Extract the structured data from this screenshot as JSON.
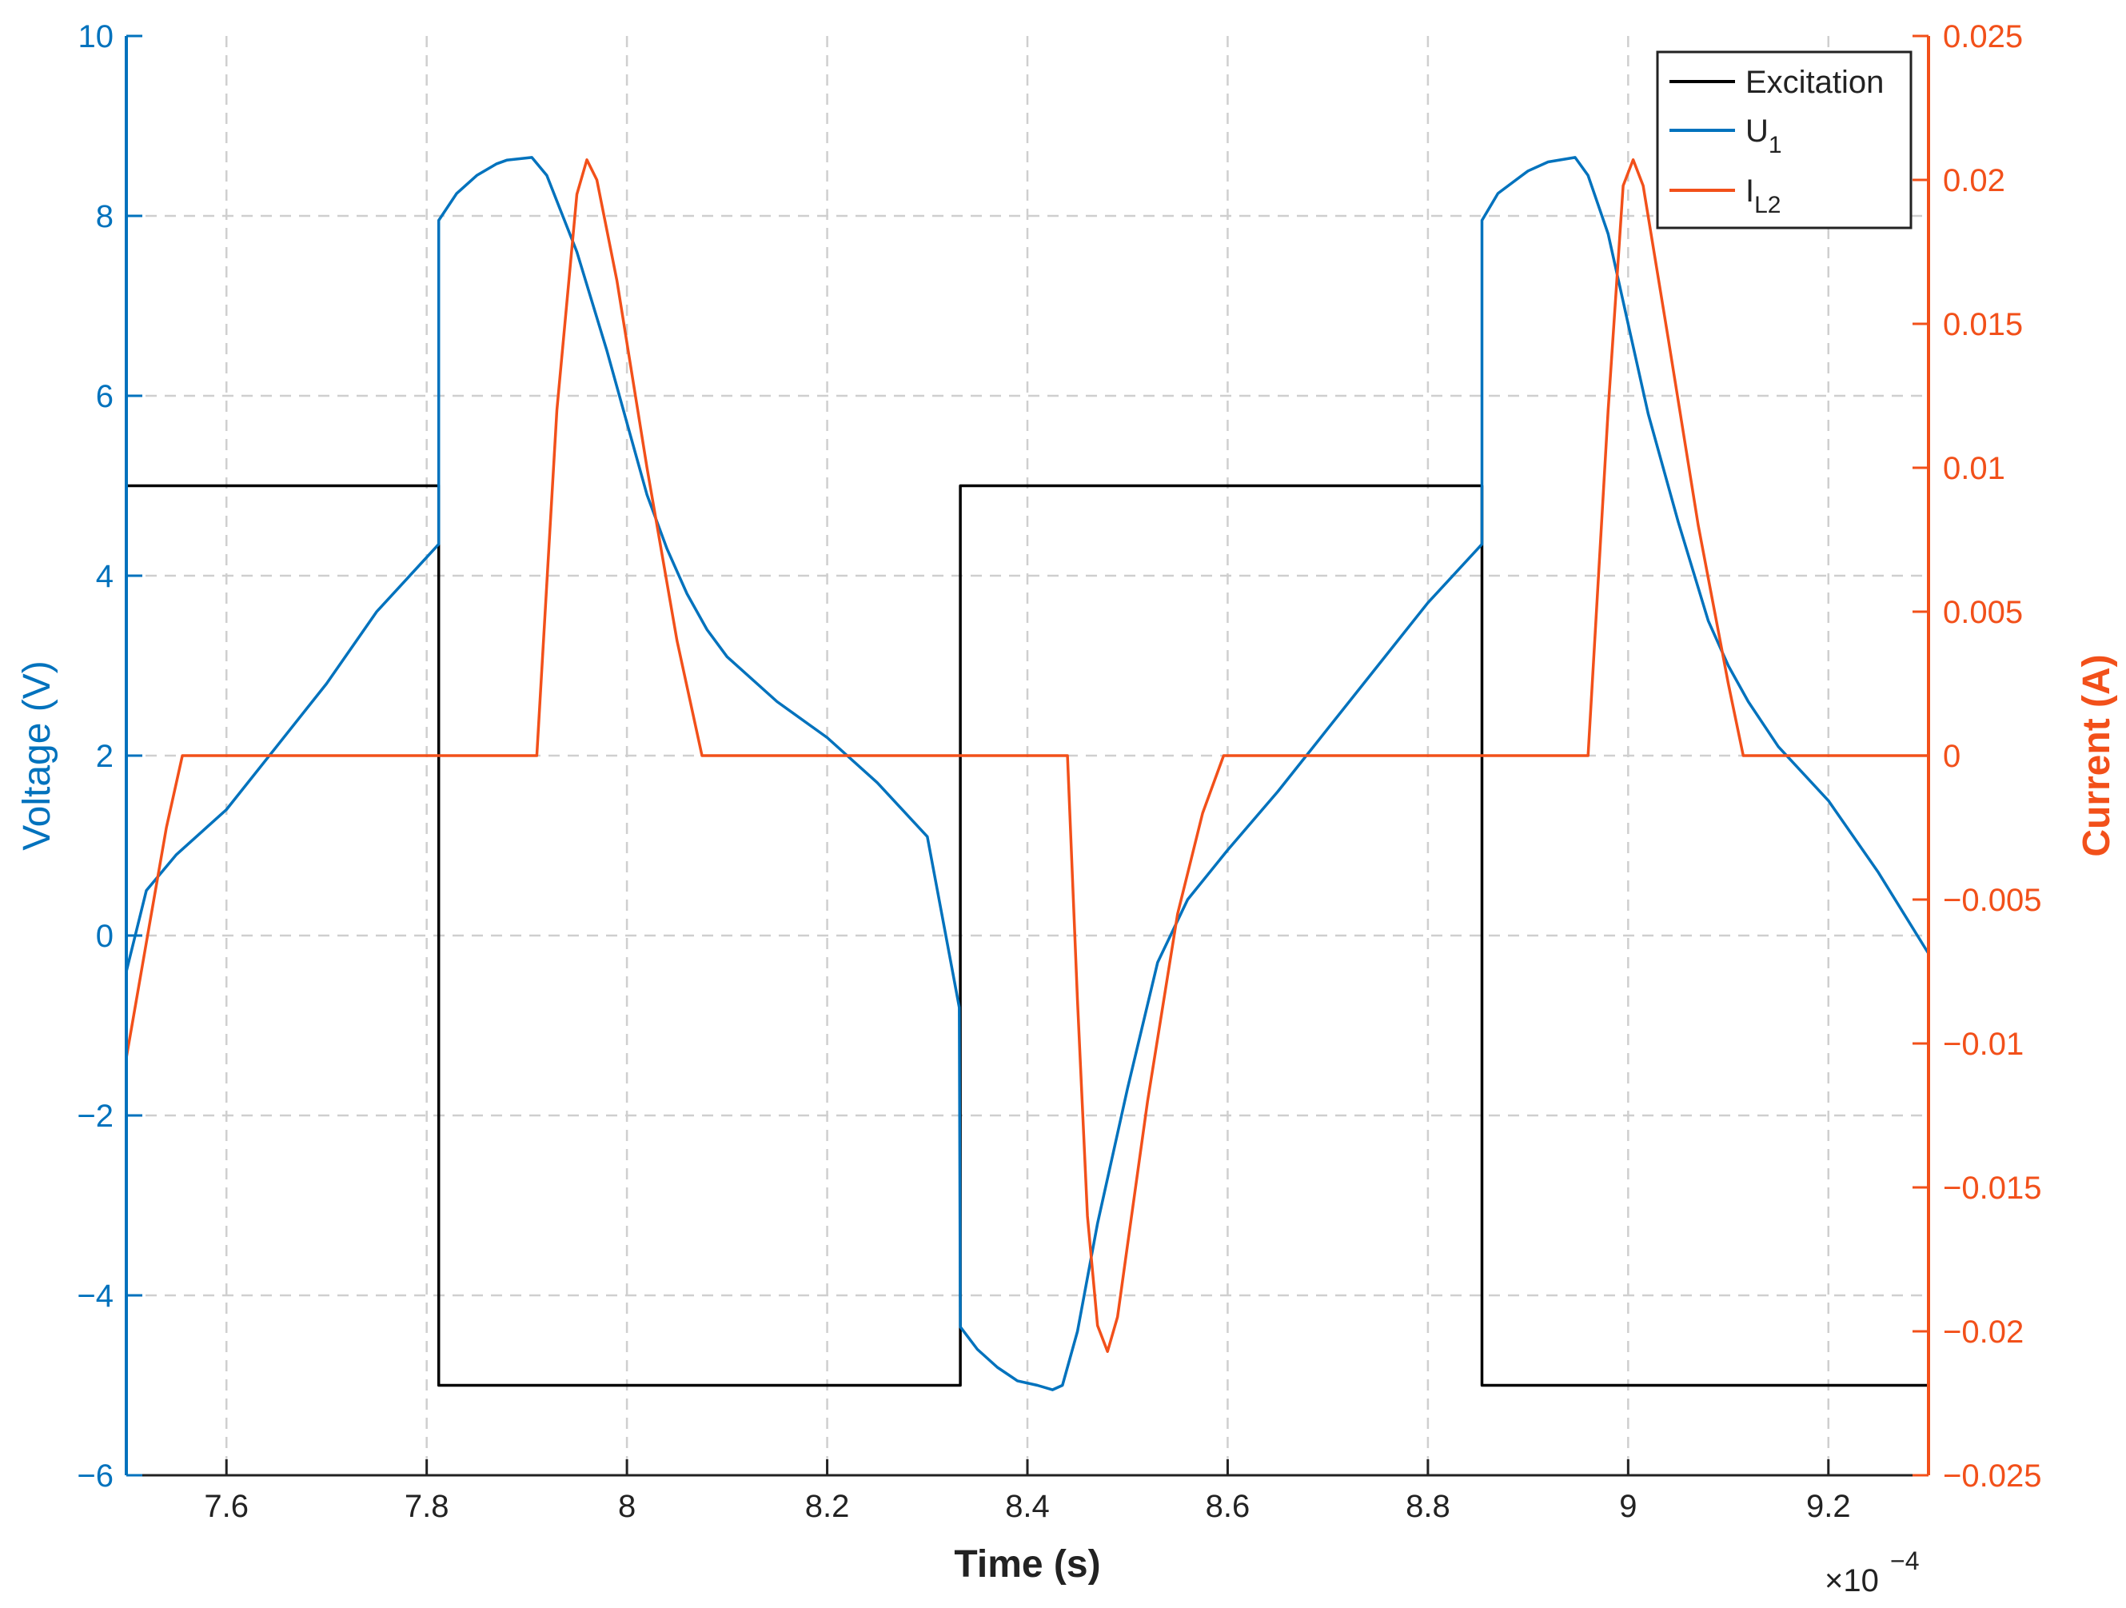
{
  "colors": {
    "excitation": "#000000",
    "u1": "#0072BD",
    "il2": "#F2501A",
    "grid": "#cfcfcf",
    "axis": "#222222"
  },
  "chart_data": {
    "type": "line",
    "title": "",
    "xlabel": "Time (s)",
    "ylabel_left": "Voltage (V)",
    "ylabel_right": "Current (A)",
    "x_exponent_base": "×10",
    "x_exponent_power": "−4",
    "xlim": [
      7.5,
      9.3
    ],
    "ylim_left": [
      -6,
      10
    ],
    "ylim_right": [
      -0.025,
      0.025
    ],
    "grid": true,
    "legend_position": "top-right",
    "x_ticks": [
      7.6,
      7.8,
      8.0,
      8.2,
      8.4,
      8.6,
      8.8,
      9.0,
      9.2
    ],
    "x_tick_labels": [
      "7.6",
      "7.8",
      "8",
      "8.2",
      "8.4",
      "8.6",
      "8.8",
      "9",
      "9.2"
    ],
    "y_left_ticks": [
      -6,
      -4,
      -2,
      0,
      2,
      4,
      6,
      8,
      10
    ],
    "y_left_tick_labels": [
      "−6",
      "−4",
      "−2",
      "0",
      "2",
      "4",
      "6",
      "8",
      "10"
    ],
    "y_right_ticks": [
      -0.025,
      -0.02,
      -0.015,
      -0.01,
      -0.005,
      0,
      0.005,
      0.01,
      0.015,
      0.02,
      0.025
    ],
    "y_right_tick_labels": [
      "−0.025",
      "−0.02",
      "−0.015",
      "−0.01",
      "−0.005",
      "0",
      "0.005",
      "0.01",
      "0.015",
      "0.02",
      "0.025"
    ],
    "legend": [
      {
        "name": "Excitation",
        "main": "Excitation",
        "sub": ""
      },
      {
        "name": "U1",
        "main": "U",
        "sub": "1"
      },
      {
        "name": "IL2",
        "main": "I",
        "sub": "L2"
      }
    ],
    "series": [
      {
        "name": "Excitation",
        "axis": "left",
        "x": [
          7.5,
          7.812,
          7.812,
          8.333,
          8.333,
          8.854,
          8.854,
          9.3
        ],
        "y": [
          5,
          5,
          -5,
          -5,
          5,
          5,
          -5,
          -5
        ]
      },
      {
        "name": "U1",
        "axis": "left",
        "x": [
          7.5,
          7.52,
          7.55,
          7.6,
          7.65,
          7.7,
          7.75,
          7.812,
          7.812,
          7.83,
          7.85,
          7.87,
          7.88,
          7.905,
          7.92,
          7.95,
          7.98,
          8.0,
          8.02,
          8.04,
          8.06,
          8.08,
          8.1,
          8.15,
          8.2,
          8.25,
          8.3,
          8.332,
          8.333,
          8.35,
          8.37,
          8.39,
          8.41,
          8.425,
          8.435,
          8.45,
          8.47,
          8.5,
          8.53,
          8.56,
          8.6,
          8.65,
          8.7,
          8.75,
          8.8,
          8.854,
          8.854,
          8.87,
          8.9,
          8.92,
          8.947,
          8.96,
          8.98,
          9.0,
          9.02,
          9.05,
          9.08,
          9.1,
          9.12,
          9.15,
          9.2,
          9.25,
          9.3
        ],
        "y": [
          -0.4,
          0.5,
          0.9,
          1.4,
          2.1,
          2.8,
          3.6,
          4.35,
          7.95,
          8.25,
          8.45,
          8.58,
          8.62,
          8.65,
          8.45,
          7.6,
          6.5,
          5.7,
          4.9,
          4.3,
          3.8,
          3.4,
          3.1,
          2.6,
          2.2,
          1.7,
          1.1,
          -0.8,
          -4.35,
          -4.6,
          -4.8,
          -4.95,
          -5.0,
          -5.05,
          -5.0,
          -4.4,
          -3.2,
          -1.7,
          -0.3,
          0.4,
          0.95,
          1.6,
          2.3,
          3.0,
          3.7,
          4.35,
          7.95,
          8.25,
          8.5,
          8.6,
          8.65,
          8.45,
          7.8,
          6.8,
          5.8,
          4.6,
          3.5,
          3.0,
          2.6,
          2.1,
          1.5,
          0.7,
          -0.2
        ]
      },
      {
        "name": "IL2",
        "axis": "right",
        "x": [
          7.5,
          7.52,
          7.54,
          7.556,
          7.6,
          7.7,
          7.8,
          7.9,
          7.91,
          7.93,
          7.95,
          7.96,
          7.97,
          7.99,
          8.02,
          8.05,
          8.075,
          8.1,
          8.2,
          8.3,
          8.4,
          8.43,
          8.44,
          8.45,
          8.46,
          8.47,
          8.48,
          8.49,
          8.5,
          8.52,
          8.55,
          8.575,
          8.596,
          8.6,
          8.7,
          8.8,
          8.9,
          8.95,
          8.96,
          8.98,
          8.995,
          9.005,
          9.015,
          9.04,
          9.07,
          9.1,
          9.115,
          9.15,
          9.2,
          9.3
        ],
        "y": [
          -0.0105,
          -0.0065,
          -0.0025,
          0.0,
          0.0,
          0.0,
          0.0,
          0.0,
          0.0,
          0.012,
          0.0195,
          0.0207,
          0.02,
          0.0165,
          0.01,
          0.004,
          0.0,
          0.0,
          0.0,
          0.0,
          0.0,
          0.0,
          0.0,
          -0.0085,
          -0.016,
          -0.0198,
          -0.0207,
          -0.0195,
          -0.017,
          -0.012,
          -0.0055,
          -0.002,
          0.0,
          0.0,
          0.0,
          0.0,
          0.0,
          0.0,
          0.0,
          0.012,
          0.0198,
          0.0207,
          0.0198,
          0.0145,
          0.008,
          0.0025,
          0.0,
          0.0,
          0.0,
          0.0
        ]
      }
    ]
  }
}
